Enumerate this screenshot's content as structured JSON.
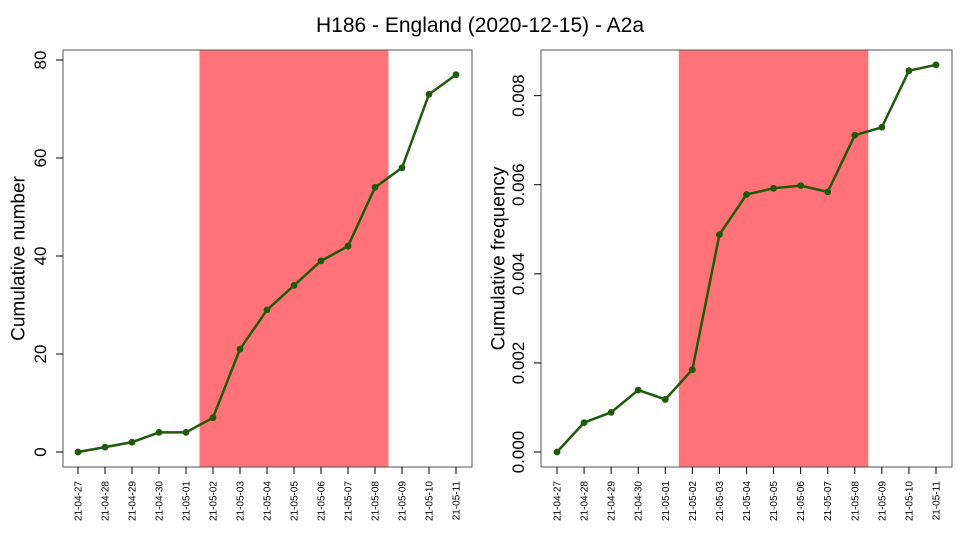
{
  "title": "H186 - England (2020-12-15) - A2a",
  "colors": {
    "line": "#1f5a0a",
    "shade": "#ff7378",
    "axis": "#000000",
    "frame": "#555555"
  },
  "chart_data": [
    {
      "type": "line",
      "ylabel": "Cumulative number",
      "ylim": [
        0,
        80
      ],
      "yticks": [
        0,
        20,
        40,
        60,
        80
      ],
      "ytick_labels": [
        "0",
        "20",
        "40",
        "60",
        "80"
      ],
      "highlight": {
        "from": "21-05-02",
        "to": "21-05-08"
      },
      "categories": [
        "21-04-27",
        "21-04-28",
        "21-04-29",
        "21-04-30",
        "21-05-01",
        "21-05-02",
        "21-05-03",
        "21-05-04",
        "21-05-05",
        "21-05-06",
        "21-05-07",
        "21-05-08",
        "21-05-09",
        "21-05-10",
        "21-05-11"
      ],
      "values": [
        0,
        1,
        2,
        4,
        4,
        7,
        21,
        29,
        34,
        39,
        42,
        54,
        58,
        73,
        77
      ],
      "grid": false
    },
    {
      "type": "line",
      "ylabel": "Cumulative frequency",
      "ylim": [
        0,
        0.0088
      ],
      "yticks": [
        0,
        0.002,
        0.004,
        0.006,
        0.008
      ],
      "ytick_labels": [
        "0.000",
        "0.002",
        "0.004",
        "0.006",
        "0.008"
      ],
      "highlight": {
        "from": "21-05-02",
        "to": "21-05-08"
      },
      "categories": [
        "21-04-27",
        "21-04-28",
        "21-04-29",
        "21-04-30",
        "21-05-01",
        "21-05-02",
        "21-05-03",
        "21-05-04",
        "21-05-05",
        "21-05-06",
        "21-05-07",
        "21-05-08",
        "21-05-09",
        "21-05-10",
        "21-05-11"
      ],
      "values": [
        0,
        0.00066,
        0.00089,
        0.00139,
        0.00118,
        0.00185,
        0.00488,
        0.00578,
        0.00592,
        0.00598,
        0.00584,
        0.00711,
        0.00729,
        0.00856,
        0.00869
      ],
      "grid": false
    }
  ]
}
